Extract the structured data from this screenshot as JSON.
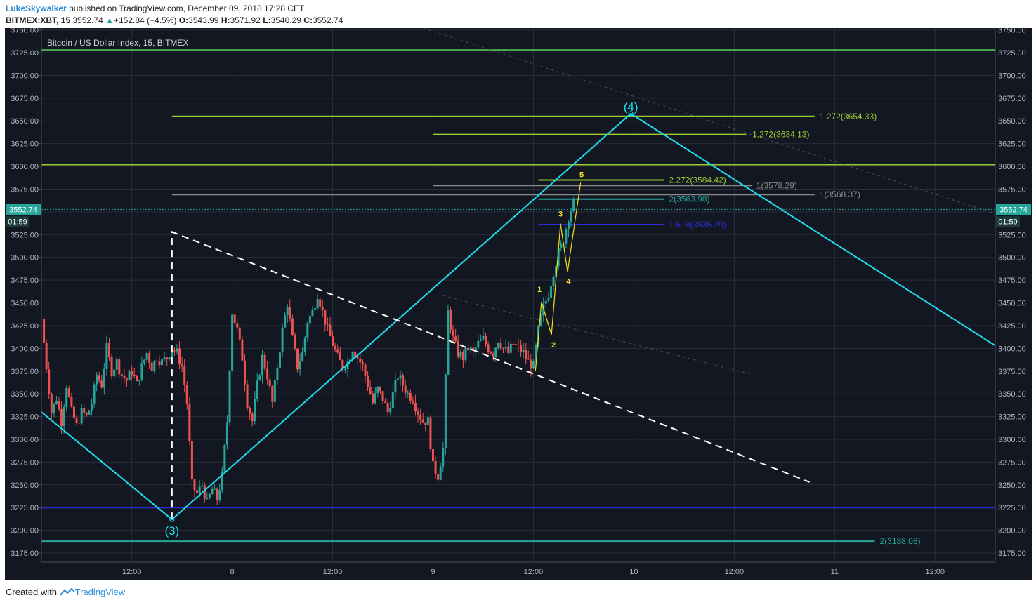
{
  "header": {
    "user": "LukeSkywalker",
    "published_text": "published on TradingView.com, December 09, 2018 17:28 CET",
    "symbol": "BITMEX:XBT, 15",
    "last": "3552.74",
    "change": "+152.84 (+4.5%)",
    "o_label": "O:",
    "o_value": "3543.99",
    "h_label": "H:",
    "h_value": "3571.92",
    "l_label": "L:",
    "l_value": "3540.29",
    "c_label": "C:",
    "c_value": "3552.74"
  },
  "footer": {
    "created_with": "Created with",
    "brand": "TradingView"
  },
  "colors": {
    "background": "#131722",
    "grid": "#2a2e39",
    "axis_text": "#b2b5be",
    "up": "#26a69a",
    "down": "#ef5350",
    "cyan": "#1ee0f0",
    "lime": "#9acd32",
    "green": "#4caf50",
    "blue": "#2c2cd4",
    "gray": "#8a8a8a",
    "teal": "#26a69a",
    "yellow": "#f0e020"
  },
  "chart_data": {
    "type": "candlestick",
    "title": "Bitcoin / US Dollar Index, 15, BITMEX",
    "ylim": [
      3165,
      3752
    ],
    "xlim": [
      0,
      95
    ],
    "y_ticks": [
      "3175.00",
      "3200.00",
      "3225.00",
      "3250.00",
      "3275.00",
      "3300.00",
      "3325.00",
      "3350.00",
      "3375.00",
      "3400.00",
      "3425.00",
      "3450.00",
      "3475.00",
      "3500.00",
      "3525.00",
      "3550.00",
      "3575.00",
      "3600.00",
      "3625.00",
      "3650.00",
      "3675.00",
      "3700.00",
      "3725.00",
      "3750.00"
    ],
    "x_ticks": [
      {
        "label": "12:00",
        "t": 9
      },
      {
        "label": "8",
        "t": 19
      },
      {
        "label": "12:00",
        "t": 29
      },
      {
        "label": "9",
        "t": 39
      },
      {
        "label": "12:00",
        "t": 49
      },
      {
        "label": "10",
        "t": 59
      },
      {
        "label": "12:00",
        "t": 69
      },
      {
        "label": "11",
        "t": 79
      },
      {
        "label": "12:00",
        "t": 89
      }
    ],
    "last_price": {
      "value": 3552.74,
      "label": "3552.74",
      "countdown": "01:59"
    },
    "price_path": [
      [
        0.0,
        3432
      ],
      [
        0.5,
        3380
      ],
      [
        1.0,
        3330
      ],
      [
        1.5,
        3345
      ],
      [
        2.0,
        3320
      ],
      [
        2.5,
        3360
      ],
      [
        3.0,
        3330
      ],
      [
        3.5,
        3315
      ],
      [
        4.0,
        3330
      ],
      [
        4.5,
        3325
      ],
      [
        5.0,
        3340
      ],
      [
        5.5,
        3370
      ],
      [
        6.0,
        3360
      ],
      [
        6.5,
        3400
      ],
      [
        7.0,
        3375
      ],
      [
        7.5,
        3385
      ],
      [
        8.0,
        3370
      ],
      [
        8.5,
        3365
      ],
      [
        9.0,
        3375
      ],
      [
        9.5,
        3360
      ],
      [
        10.0,
        3380
      ],
      [
        10.5,
        3395
      ],
      [
        11.0,
        3380
      ],
      [
        11.5,
        3390
      ],
      [
        12.0,
        3385
      ],
      [
        12.5,
        3390
      ],
      [
        13.0,
        3400
      ],
      [
        13.5,
        3395
      ],
      [
        14.0,
        3380
      ],
      [
        14.5,
        3340
      ],
      [
        15.0,
        3250
      ],
      [
        15.5,
        3240
      ],
      [
        16.0,
        3250
      ],
      [
        16.5,
        3230
      ],
      [
        17.0,
        3245
      ],
      [
        17.5,
        3235
      ],
      [
        18.0,
        3260
      ],
      [
        18.5,
        3320
      ],
      [
        19.0,
        3440
      ],
      [
        19.5,
        3420
      ],
      [
        20.0,
        3390
      ],
      [
        20.5,
        3340
      ],
      [
        21.0,
        3320
      ],
      [
        21.5,
        3360
      ],
      [
        22.0,
        3390
      ],
      [
        22.5,
        3370
      ],
      [
        23.0,
        3340
      ],
      [
        23.5,
        3380
      ],
      [
        24.0,
        3420
      ],
      [
        24.5,
        3450
      ],
      [
        25.0,
        3410
      ],
      [
        25.5,
        3380
      ],
      [
        26.0,
        3395
      ],
      [
        26.5,
        3430
      ],
      [
        27.0,
        3440
      ],
      [
        27.5,
        3460
      ],
      [
        28.0,
        3440
      ],
      [
        28.5,
        3420
      ],
      [
        29.0,
        3405
      ],
      [
        29.5,
        3390
      ],
      [
        30.0,
        3380
      ],
      [
        30.5,
        3385
      ],
      [
        31.0,
        3400
      ],
      [
        31.5,
        3390
      ],
      [
        32.0,
        3380
      ],
      [
        32.5,
        3360
      ],
      [
        33.0,
        3340
      ],
      [
        33.5,
        3355
      ],
      [
        34.0,
        3345
      ],
      [
        34.5,
        3330
      ],
      [
        35.0,
        3350
      ],
      [
        35.5,
        3370
      ],
      [
        36.0,
        3360
      ],
      [
        36.5,
        3350
      ],
      [
        37.0,
        3345
      ],
      [
        37.5,
        3330
      ],
      [
        38.0,
        3320
      ],
      [
        38.5,
        3320
      ],
      [
        39.0,
        3270
      ],
      [
        39.5,
        3260
      ],
      [
        40.0,
        3290
      ],
      [
        40.5,
        3440
      ],
      [
        41.0,
        3410
      ],
      [
        41.5,
        3395
      ],
      [
        42.0,
        3390
      ],
      [
        42.5,
        3400
      ],
      [
        43.0,
        3395
      ],
      [
        43.5,
        3405
      ],
      [
        44.0,
        3410
      ],
      [
        44.5,
        3400
      ],
      [
        45.0,
        3395
      ],
      [
        45.5,
        3410
      ],
      [
        46.0,
        3400
      ],
      [
        46.5,
        3395
      ],
      [
        47.0,
        3405
      ],
      [
        47.5,
        3400
      ],
      [
        48.0,
        3395
      ],
      [
        48.5,
        3385
      ],
      [
        49.0,
        3380
      ],
      [
        49.5,
        3420
      ],
      [
        50.0,
        3445
      ],
      [
        50.5,
        3460
      ],
      [
        51.0,
        3485
      ],
      [
        51.5,
        3505
      ],
      [
        52.0,
        3520
      ],
      [
        52.5,
        3545
      ],
      [
        53.0,
        3560
      ]
    ],
    "lines": [
      {
        "kind": "hline",
        "t1": 0,
        "t2": 95,
        "price": 3728,
        "color": "green"
      },
      {
        "kind": "hline",
        "t1": 13,
        "t2": 77,
        "price": 3655,
        "color": "lime"
      },
      {
        "kind": "hline",
        "t1": 39.0,
        "t2": 70.2,
        "price": 3635,
        "color": "lime"
      },
      {
        "kind": "hline",
        "t1": 0,
        "t2": 95,
        "price": 3602,
        "color": "lime"
      },
      {
        "kind": "hline",
        "t1": 49.5,
        "t2": 62.0,
        "price": 3585,
        "color": "lime"
      },
      {
        "kind": "hline",
        "t1": 39.0,
        "t2": 70.8,
        "price": 3579,
        "color": "gray"
      },
      {
        "kind": "hline",
        "t1": 13,
        "t2": 77,
        "price": 3569,
        "color": "gray"
      },
      {
        "kind": "hline",
        "t1": 49.5,
        "t2": 62.0,
        "price": 3564,
        "color": "teal"
      },
      {
        "kind": "hline",
        "t1": 49.5,
        "t2": 62.0,
        "price": 3536,
        "color": "blue"
      },
      {
        "kind": "hline",
        "t1": 0,
        "t2": 95,
        "price": 3225,
        "color": "blue"
      },
      {
        "kind": "hline",
        "t1": 0,
        "t2": 83,
        "price": 3188,
        "color": "teal"
      }
    ],
    "level_labels": [
      {
        "text": "1.272(3654.33)",
        "t": 77.5,
        "price": 3655,
        "color": "lime"
      },
      {
        "text": "1.272(3634.13)",
        "t": 70.8,
        "price": 3635,
        "color": "lime"
      },
      {
        "text": "2.272(3584.42)",
        "t": 62.5,
        "price": 3585,
        "color": "lime"
      },
      {
        "text": "1(3578.29)",
        "t": 71.2,
        "price": 3579,
        "color": "gray"
      },
      {
        "text": "1(3568.37)",
        "t": 77.5,
        "price": 3569,
        "color": "gray"
      },
      {
        "text": "2(3563.98)",
        "t": 62.5,
        "price": 3564,
        "color": "teal"
      },
      {
        "text": "1.618(3535.29)",
        "t": 62.5,
        "price": 3536,
        "color": "blue"
      },
      {
        "text": "2(3188.08)",
        "t": 83.5,
        "price": 3188,
        "color": "teal"
      }
    ],
    "wave_labels": [
      {
        "text": "(4)",
        "t": 58.7,
        "price": 3661,
        "color": "cyan",
        "size": 17
      },
      {
        "text": "(3)",
        "t": 13.0,
        "price": 3195,
        "color": "cyan",
        "size": 17
      },
      {
        "text": "1",
        "t": 49.6,
        "price": 3462,
        "color": "yellow",
        "size": 11
      },
      {
        "text": "2",
        "t": 51.0,
        "price": 3401,
        "color": "yellow",
        "size": 11
      },
      {
        "text": "3",
        "t": 51.7,
        "price": 3545,
        "color": "yellow",
        "size": 11
      },
      {
        "text": "4",
        "t": 52.5,
        "price": 3471,
        "color": "yellow",
        "size": 11
      },
      {
        "text": "5",
        "t": 53.8,
        "price": 3588,
        "color": "yellow",
        "size": 11
      }
    ]
  }
}
